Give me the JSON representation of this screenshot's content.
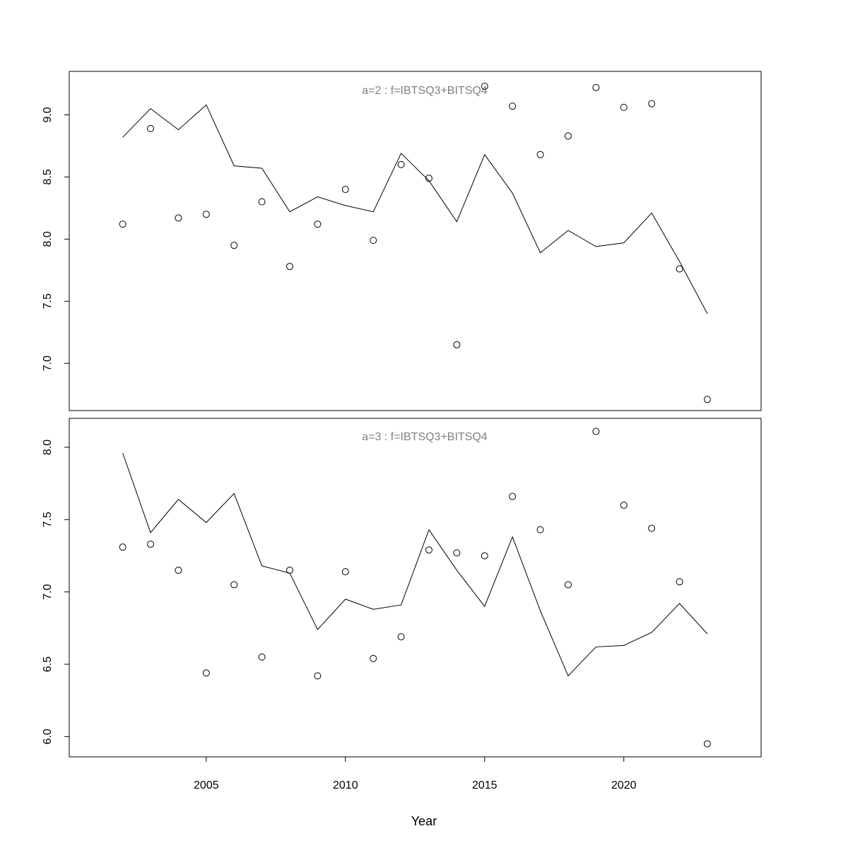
{
  "chart_data": [
    {
      "type": "line",
      "title": "a=2  :  f=IBTSQ3+BITSQ4",
      "xlim": [
        2000.08,
        2024.93
      ],
      "ylim": [
        6.62,
        9.35
      ],
      "yticks": [
        7.0,
        7.5,
        8.0,
        8.5,
        9.0
      ],
      "ytick_labels": [
        "7.0",
        "7.5",
        "8.0",
        "8.5",
        "9.0"
      ],
      "grid": false,
      "x": [
        2002,
        2003,
        2004,
        2005,
        2006,
        2007,
        2008,
        2009,
        2010,
        2011,
        2012,
        2013,
        2014,
        2015,
        2016,
        2017,
        2018,
        2019,
        2020,
        2021,
        2022,
        2023
      ],
      "series": [
        {
          "style": "points",
          "values": [
            8.12,
            8.89,
            8.17,
            8.2,
            7.95,
            8.3,
            7.78,
            8.12,
            8.4,
            7.99,
            8.6,
            8.49,
            7.15,
            9.23,
            9.07,
            8.68,
            8.83,
            9.22,
            9.06,
            9.09,
            7.76,
            6.71
          ]
        },
        {
          "style": "line",
          "values": [
            8.82,
            9.05,
            8.88,
            9.08,
            8.59,
            8.57,
            8.22,
            8.34,
            8.27,
            8.22,
            8.69,
            8.47,
            8.14,
            8.68,
            8.37,
            7.89,
            8.07,
            7.94,
            7.97,
            8.21,
            7.82,
            7.4
          ]
        }
      ]
    },
    {
      "type": "line",
      "title": "a=3  :  f=IBTSQ3+BITSQ4",
      "xlabel": "Year",
      "xlim": [
        2000.08,
        2024.93
      ],
      "ylim": [
        5.86,
        8.2
      ],
      "xticks": [
        2005,
        2010,
        2015,
        2020
      ],
      "xtick_labels": [
        "2005",
        "2010",
        "2015",
        "2020"
      ],
      "yticks": [
        6.0,
        6.5,
        7.0,
        7.5,
        8.0
      ],
      "ytick_labels": [
        "6.0",
        "6.5",
        "7.0",
        "7.5",
        "8.0"
      ],
      "grid": false,
      "x": [
        2002,
        2003,
        2004,
        2005,
        2006,
        2007,
        2008,
        2009,
        2010,
        2011,
        2012,
        2013,
        2014,
        2015,
        2016,
        2017,
        2018,
        2019,
        2020,
        2021,
        2022,
        2023
      ],
      "series": [
        {
          "style": "points",
          "values": [
            7.31,
            7.33,
            7.15,
            6.44,
            7.05,
            6.55,
            7.15,
            6.42,
            7.14,
            6.54,
            6.69,
            7.29,
            7.27,
            7.25,
            7.66,
            7.43,
            7.05,
            8.11,
            7.6,
            7.44,
            7.07,
            5.95
          ]
        },
        {
          "style": "line",
          "values": [
            7.96,
            7.41,
            7.64,
            7.48,
            7.68,
            7.18,
            7.13,
            6.74,
            6.95,
            6.88,
            6.91,
            7.43,
            7.15,
            6.9,
            7.38,
            6.87,
            6.42,
            6.62,
            6.63,
            6.72,
            6.92,
            6.71
          ]
        }
      ]
    }
  ]
}
